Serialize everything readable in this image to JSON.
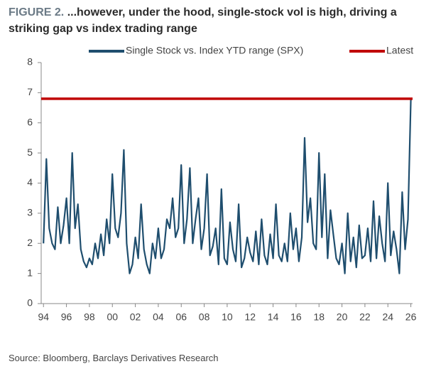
{
  "chart_data": {
    "type": "line",
    "figure_label": "FIGURE 2.",
    "title": "...however, under the hood, single-stock vol is high, driving a striking gap vs index trading range",
    "source": "Source: Bloomberg, Barclays Derivatives Research",
    "xlim": [
      1993.8,
      2026.15
    ],
    "ylim": [
      0,
      8
    ],
    "yticks": [
      0,
      1,
      2,
      3,
      4,
      5,
      6,
      7,
      8
    ],
    "xticks": [
      {
        "value": 1994,
        "label": "94"
      },
      {
        "value": 1996,
        "label": "96"
      },
      {
        "value": 1998,
        "label": "98"
      },
      {
        "value": 2000,
        "label": "00"
      },
      {
        "value": 2002,
        "label": "02"
      },
      {
        "value": 2004,
        "label": "04"
      },
      {
        "value": 2006,
        "label": "06"
      },
      {
        "value": 2008,
        "label": "08"
      },
      {
        "value": 2010,
        "label": "10"
      },
      {
        "value": 2012,
        "label": "12"
      },
      {
        "value": 2014,
        "label": "14"
      },
      {
        "value": 2016,
        "label": "16"
      },
      {
        "value": 2018,
        "label": "18"
      },
      {
        "value": 2020,
        "label": "20"
      },
      {
        "value": 2022,
        "label": "22"
      },
      {
        "value": 2024,
        "label": "24"
      },
      {
        "value": 2026,
        "label": "26"
      }
    ],
    "series": [
      {
        "name": "Single Stock vs. Index YTD range (SPX)",
        "color": "#1f4e6e",
        "x": [
          1994,
          1994.25,
          1994.5,
          1994.75,
          1995,
          1995.25,
          1995.5,
          1995.75,
          1996,
          1996.25,
          1996.5,
          1996.75,
          1997,
          1997.25,
          1997.5,
          1997.75,
          1998,
          1998.25,
          1998.5,
          1998.75,
          1999,
          1999.25,
          1999.5,
          1999.75,
          2000,
          2000.25,
          2000.5,
          2000.75,
          2001,
          2001.25,
          2001.5,
          2001.75,
          2002,
          2002.25,
          2002.5,
          2002.75,
          2003,
          2003.25,
          2003.5,
          2003.75,
          2004,
          2004.25,
          2004.5,
          2004.75,
          2005,
          2005.25,
          2005.5,
          2005.75,
          2006,
          2006.25,
          2006.5,
          2006.75,
          2007,
          2007.25,
          2007.5,
          2007.75,
          2008,
          2008.25,
          2008.5,
          2008.75,
          2009,
          2009.25,
          2009.5,
          2009.75,
          2010,
          2010.25,
          2010.5,
          2010.75,
          2011,
          2011.25,
          2011.5,
          2011.75,
          2012,
          2012.25,
          2012.5,
          2012.75,
          2013,
          2013.25,
          2013.5,
          2013.75,
          2014,
          2014.25,
          2014.5,
          2014.75,
          2015,
          2015.25,
          2015.5,
          2015.75,
          2016,
          2016.25,
          2016.5,
          2016.75,
          2017,
          2017.25,
          2017.5,
          2017.75,
          2018,
          2018.25,
          2018.5,
          2018.75,
          2019,
          2019.25,
          2019.5,
          2019.75,
          2020,
          2020.25,
          2020.5,
          2020.75,
          2021,
          2021.25,
          2021.5,
          2021.75,
          2022,
          2022.25,
          2022.5,
          2022.75,
          2023,
          2023.25,
          2023.5,
          2023.75,
          2024,
          2024.25,
          2024.5,
          2024.75,
          2025,
          2025.25,
          2025.5,
          2025.75,
          2026
        ],
        "values": [
          2.0,
          4.8,
          2.5,
          2.0,
          1.8,
          3.2,
          2.0,
          2.6,
          3.5,
          2.0,
          5.0,
          2.5,
          3.3,
          1.8,
          1.4,
          1.2,
          1.5,
          1.3,
          2.0,
          1.5,
          2.3,
          1.6,
          2.8,
          2.0,
          4.3,
          2.5,
          2.2,
          3.0,
          5.1,
          2.0,
          1.0,
          1.3,
          2.2,
          1.5,
          3.3,
          1.8,
          1.3,
          1.0,
          2.0,
          1.5,
          2.5,
          1.5,
          1.8,
          2.8,
          2.5,
          3.5,
          2.2,
          2.5,
          4.6,
          2.0,
          2.8,
          4.5,
          2.0,
          2.8,
          3.5,
          1.8,
          2.5,
          4.3,
          1.6,
          1.9,
          2.5,
          1.3,
          3.8,
          1.5,
          1.3,
          2.7,
          1.8,
          1.4,
          3.3,
          1.2,
          1.5,
          2.2,
          1.7,
          1.4,
          2.4,
          1.3,
          2.8,
          1.6,
          1.3,
          2.3,
          1.5,
          3.3,
          1.6,
          1.4,
          2.0,
          1.4,
          3.0,
          1.8,
          2.5,
          1.4,
          2.2,
          5.5,
          2.7,
          3.5,
          2.0,
          1.8,
          5.0,
          2.2,
          4.3,
          1.5,
          3.1,
          2.3,
          1.5,
          1.3,
          2.0,
          1.0,
          3.0,
          1.4,
          2.2,
          1.2,
          2.6,
          1.5,
          1.6,
          2.5,
          1.4,
          3.4,
          1.5,
          2.9,
          2.0,
          1.4,
          4.0,
          1.6,
          2.4,
          1.8,
          1.0,
          3.7,
          1.8,
          2.8,
          6.8
        ]
      },
      {
        "name": "Latest",
        "color": "#c00000",
        "x": [
          1993.8,
          2026.15
        ],
        "values": [
          6.8,
          6.8
        ]
      }
    ]
  }
}
